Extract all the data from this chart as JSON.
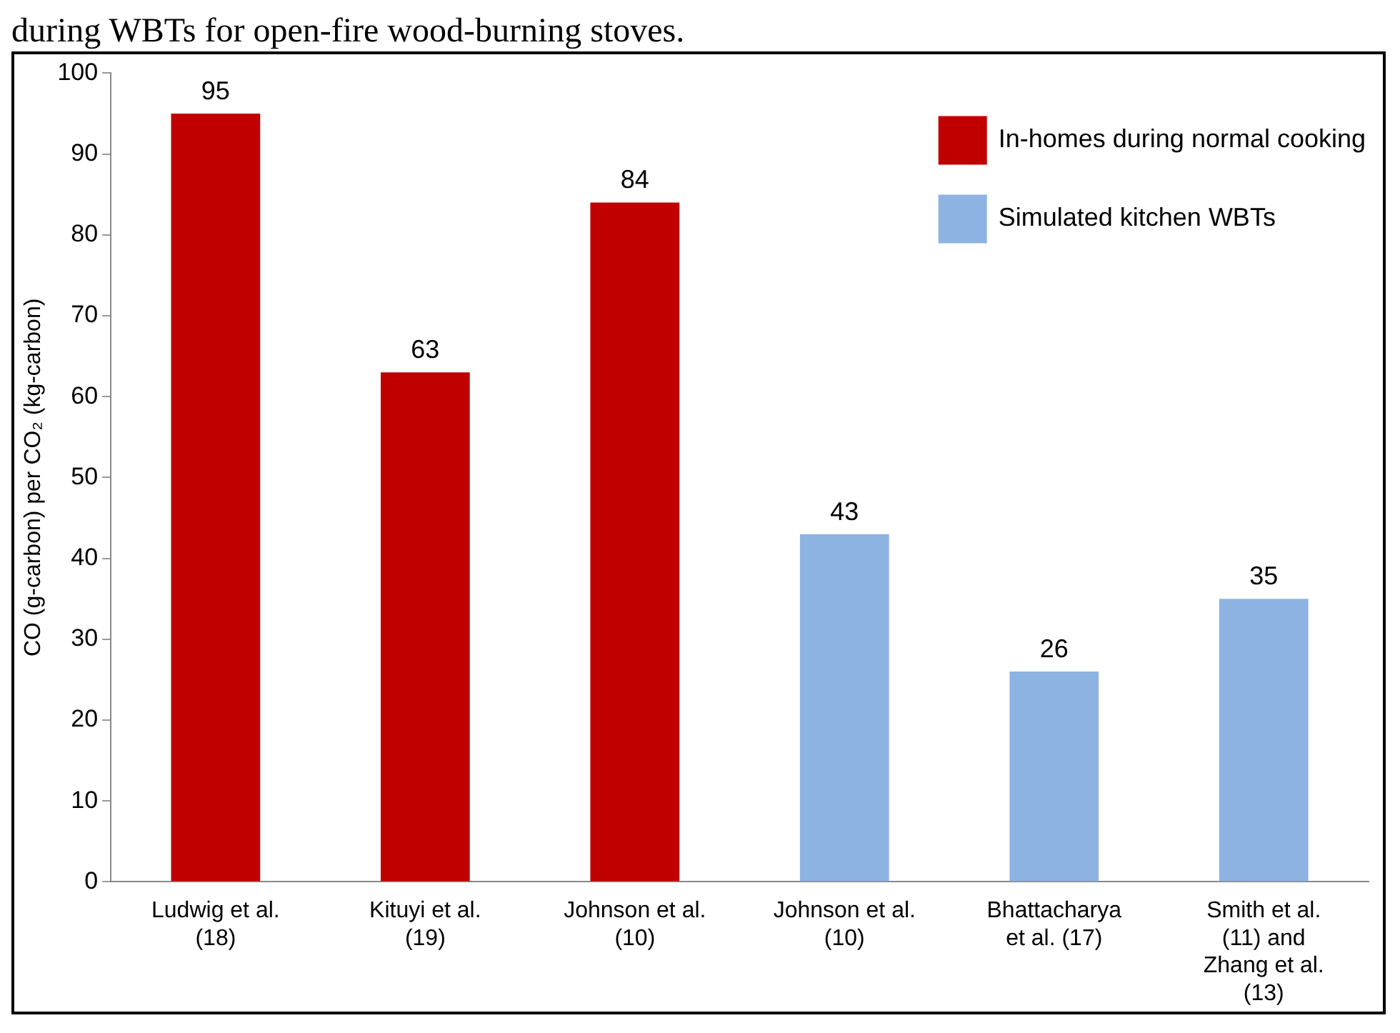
{
  "chart_data": {
    "type": "bar",
    "title": "during WBTs for open-fire wood-burning stoves.",
    "ylabel": "CO (g-carbon) per CO₂ (kg-carbon)",
    "categories": [
      "Ludwig et al. (18)",
      "Kituyi et al. (19)",
      "Johnson et al. (10)",
      "Johnson et al. (10)",
      "Bhattacharya et al. (17)",
      "Smith et al. (11) and Zhang et al. (13)"
    ],
    "series": [
      {
        "name": "In-homes during normal cooking",
        "color": "#c00000",
        "values": [
          95,
          63,
          84,
          null,
          null,
          null
        ]
      },
      {
        "name": "Simulated kitchen WBTs",
        "color": "#8db3e2",
        "values": [
          null,
          null,
          null,
          43,
          26,
          35
        ]
      }
    ],
    "ylim": [
      0,
      100
    ],
    "yticks": [
      0,
      10,
      20,
      30,
      40,
      50,
      60,
      70,
      80,
      90,
      100
    ],
    "grid": false,
    "legend": "top right",
    "data_labels": true
  }
}
